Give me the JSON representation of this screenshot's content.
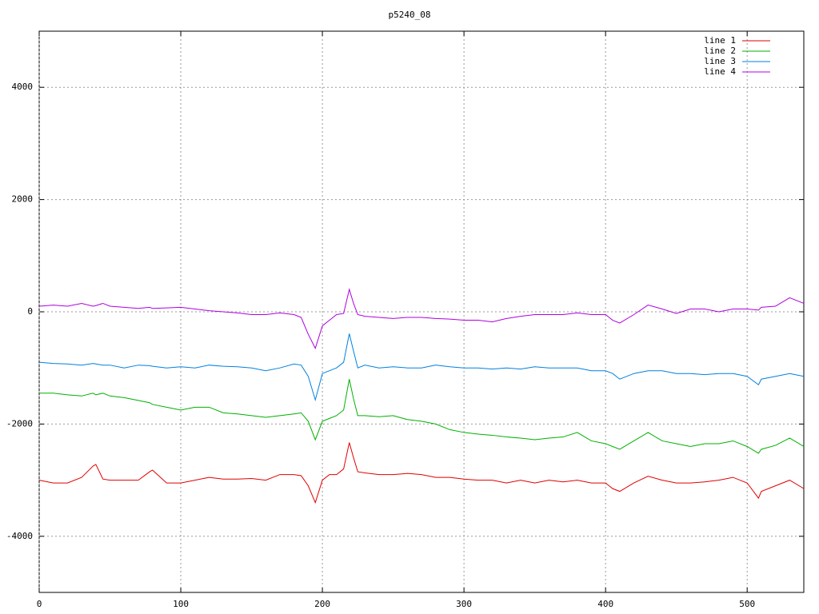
{
  "chart_data": {
    "type": "line",
    "title": "p5240_08",
    "x": [
      0,
      10,
      20,
      30,
      38,
      40,
      45,
      50,
      60,
      70,
      78,
      80,
      90,
      100,
      110,
      120,
      130,
      140,
      150,
      160,
      170,
      180,
      185,
      190,
      195,
      200,
      205,
      210,
      215,
      219,
      222,
      225,
      230,
      240,
      250,
      260,
      270,
      280,
      290,
      300,
      310,
      320,
      330,
      340,
      350,
      360,
      370,
      380,
      390,
      400,
      405,
      410,
      420,
      430,
      440,
      450,
      460,
      470,
      480,
      490,
      500,
      508,
      510,
      520,
      530,
      540
    ],
    "series": [
      {
        "name": "line 1",
        "color": "#e00000",
        "values": [
          -3000,
          -3050,
          -3050,
          -2950,
          -2750,
          -2720,
          -2980,
          -3000,
          -3000,
          -3000,
          -2850,
          -2820,
          -3050,
          -3050,
          -3000,
          -2950,
          -2980,
          -2980,
          -2970,
          -3000,
          -2900,
          -2900,
          -2920,
          -3100,
          -3400,
          -3000,
          -2900,
          -2900,
          -2800,
          -2330,
          -2600,
          -2850,
          -2870,
          -2900,
          -2900,
          -2880,
          -2900,
          -2950,
          -2950,
          -2980,
          -3000,
          -3000,
          -3050,
          -3000,
          -3050,
          -3000,
          -3030,
          -3000,
          -3050,
          -3050,
          -3150,
          -3200,
          -3050,
          -2930,
          -3000,
          -3050,
          -3050,
          -3030,
          -3000,
          -2950,
          -3050,
          -3320,
          -3200,
          -3100,
          -3000,
          -3150
        ]
      },
      {
        "name": "line 2",
        "color": "#00b000",
        "values": [
          -1450,
          -1450,
          -1480,
          -1500,
          -1450,
          -1480,
          -1450,
          -1500,
          -1530,
          -1580,
          -1620,
          -1650,
          -1700,
          -1750,
          -1700,
          -1700,
          -1800,
          -1820,
          -1850,
          -1880,
          -1850,
          -1820,
          -1800,
          -1950,
          -2280,
          -1950,
          -1900,
          -1850,
          -1750,
          -1200,
          -1550,
          -1850,
          -1850,
          -1870,
          -1850,
          -1920,
          -1950,
          -2000,
          -2100,
          -2150,
          -2180,
          -2200,
          -2230,
          -2250,
          -2280,
          -2250,
          -2230,
          -2150,
          -2300,
          -2350,
          -2400,
          -2450,
          -2300,
          -2150,
          -2300,
          -2350,
          -2400,
          -2350,
          -2350,
          -2300,
          -2400,
          -2520,
          -2450,
          -2380,
          -2250,
          -2400
        ]
      },
      {
        "name": "line 3",
        "color": "#0080e0",
        "values": [
          -900,
          -920,
          -930,
          -950,
          -920,
          -930,
          -950,
          -950,
          -1000,
          -950,
          -960,
          -970,
          -1000,
          -980,
          -1000,
          -950,
          -970,
          -980,
          -1000,
          -1050,
          -1000,
          -930,
          -950,
          -1150,
          -1570,
          -1100,
          -1050,
          -1000,
          -900,
          -390,
          -700,
          -1000,
          -950,
          -1000,
          -980,
          -1000,
          -1000,
          -950,
          -980,
          -1000,
          -1000,
          -1020,
          -1000,
          -1020,
          -980,
          -1000,
          -1000,
          -1000,
          -1050,
          -1050,
          -1100,
          -1200,
          -1100,
          -1050,
          -1050,
          -1100,
          -1100,
          -1120,
          -1100,
          -1100,
          -1150,
          -1300,
          -1200,
          -1150,
          -1100,
          -1150
        ]
      },
      {
        "name": "line 4",
        "color": "#b000e0",
        "values": [
          100,
          120,
          100,
          150,
          100,
          110,
          150,
          100,
          80,
          60,
          80,
          60,
          70,
          80,
          50,
          20,
          0,
          -20,
          -50,
          -50,
          -20,
          -50,
          -100,
          -400,
          -650,
          -250,
          -150,
          -50,
          -30,
          400,
          150,
          -50,
          -80,
          -100,
          -120,
          -100,
          -100,
          -120,
          -130,
          -150,
          -150,
          -180,
          -120,
          -80,
          -50,
          -50,
          -50,
          -20,
          -50,
          -50,
          -150,
          -200,
          -50,
          120,
          50,
          -30,
          50,
          50,
          0,
          50,
          50,
          30,
          80,
          100,
          250,
          150
        ]
      }
    ],
    "xlim": [
      0,
      540
    ],
    "xticks": [
      0,
      100,
      200,
      300,
      400,
      500
    ],
    "ylim": [
      -5000,
      5000
    ],
    "yticks": [
      -4000,
      -2000,
      0,
      2000,
      4000
    ],
    "grid": true,
    "legend": "top-right"
  }
}
